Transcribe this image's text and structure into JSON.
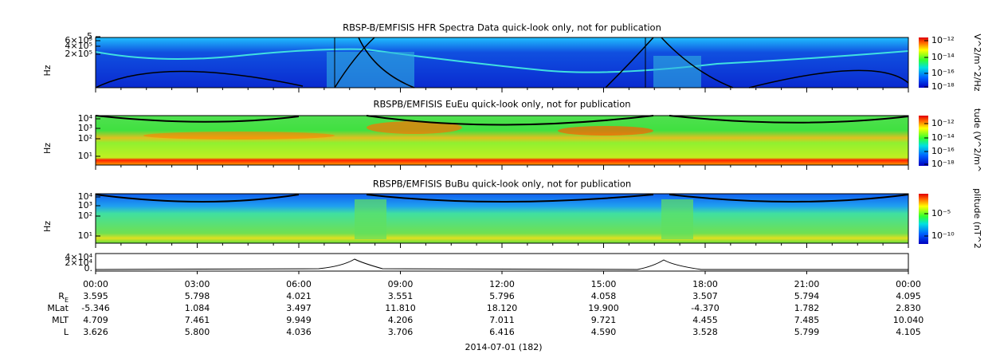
{
  "panels": [
    {
      "title": "RBSP-B/EMFISIS  HFR Spectra Data quick-look only, not for publication",
      "y_label": "Hz",
      "y_ticks": [
        "5",
        "6×10⁵",
        "4×10⁵",
        "2×10⁵"
      ],
      "colorbar_ticks": [
        "10⁻¹²",
        "10⁻¹⁴",
        "10⁻¹⁶",
        "10⁻¹⁸"
      ],
      "colorbar_label": "V^2/m^2/Hz"
    },
    {
      "title": "RBSPB/EMFISIS  EuEu quick-look only, not for publication",
      "y_label": "Hz",
      "y_ticks": [
        "10⁴",
        "10³",
        "10²",
        "10¹"
      ],
      "colorbar_ticks": [
        "10⁻¹²",
        "10⁻¹⁴",
        "10⁻¹⁶",
        "10⁻¹⁸"
      ],
      "colorbar_label": "tude (V^2/m^"
    },
    {
      "title": "RBSPB/EMFISIS  BuBu quick-look only, not for publication",
      "y_label": "Hz",
      "y_ticks": [
        "10⁴",
        "10³",
        "10²",
        "10¹"
      ],
      "colorbar_ticks": [
        "10⁻⁵",
        "10⁻¹⁰"
      ],
      "colorbar_label": "plitude (nT^2"
    }
  ],
  "line_panel": {
    "y_ticks": [
      "4×10⁴",
      "2×10⁴",
      "0."
    ]
  },
  "x_ticks": [
    "00:00",
    "03:00",
    "06:00",
    "09:00",
    "12:00",
    "15:00",
    "18:00",
    "21:00",
    "00:00"
  ],
  "ephemeris": [
    {
      "label": "R",
      "sub": "E",
      "values": [
        "3.595",
        "5.798",
        "4.021",
        "3.551",
        "5.796",
        "4.058",
        "3.507",
        "5.794",
        "4.095"
      ]
    },
    {
      "label": "MLat",
      "values": [
        "-5.346",
        "1.084",
        "3.497",
        "11.810",
        "18.120",
        "19.900",
        "-4.370",
        "1.782",
        "2.830"
      ]
    },
    {
      "label": "MLT",
      "values": [
        "4.709",
        "7.461",
        "9.949",
        "4.206",
        "7.011",
        "9.721",
        "4.455",
        "7.485",
        "10.040"
      ]
    },
    {
      "label": "L",
      "values": [
        "3.626",
        "5.800",
        "4.036",
        "3.706",
        "6.416",
        "4.590",
        "3.528",
        "5.799",
        "4.105"
      ]
    }
  ],
  "date": "2014-07-01 (182)"
}
